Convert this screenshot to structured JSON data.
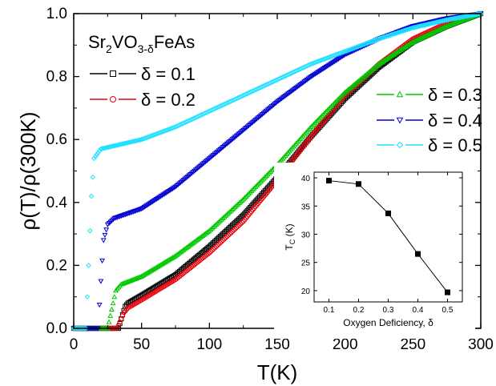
{
  "chart_data": [
    {
      "type": "scatter",
      "xlabel": "T(K)",
      "ylabel": "ρ(T)/ρ(300K)",
      "xlim": [
        0,
        300
      ],
      "ylim": [
        0,
        1.0
      ],
      "xticks": [
        "0",
        "50",
        "100",
        "150",
        "200",
        "250",
        "300"
      ],
      "yticks": [
        "0.0",
        "0.2",
        "0.4",
        "0.6",
        "0.8",
        "1.0"
      ],
      "grid": false,
      "legend_placement": "top-left and right",
      "compound": {
        "base": "Sr",
        "sub1": "2",
        "mid": "VO",
        "sub2": "3-δ",
        "end": "FeAs"
      },
      "series": [
        {
          "name": "δ = 0.1",
          "marker": "square",
          "color": "#000000",
          "tc": 33,
          "onset": 38,
          "x": [
            0,
            33,
            35,
            38,
            40,
            50,
            75,
            100,
            125,
            150,
            175,
            200,
            225,
            250,
            275,
            300
          ],
          "y": [
            0,
            0,
            0.03,
            0.07,
            0.08,
            0.105,
            0.17,
            0.26,
            0.36,
            0.48,
            0.61,
            0.73,
            0.83,
            0.91,
            0.96,
            1.0
          ]
        },
        {
          "name": "δ = 0.2",
          "marker": "circle",
          "color": "#e8000b",
          "tc": 32,
          "onset": 40,
          "x": [
            0,
            32,
            34,
            37,
            40,
            50,
            75,
            100,
            125,
            150,
            175,
            200,
            225,
            250,
            275,
            300
          ],
          "y": [
            0,
            0,
            0.02,
            0.05,
            0.065,
            0.09,
            0.155,
            0.24,
            0.34,
            0.47,
            0.61,
            0.74,
            0.84,
            0.92,
            0.97,
            1.0
          ]
        },
        {
          "name": "δ = 0.3",
          "marker": "triangle-up",
          "color": "#00c800",
          "tc": 25,
          "onset": 33,
          "x": [
            0,
            25,
            28,
            31,
            35,
            50,
            75,
            100,
            125,
            150,
            175,
            200,
            225,
            250,
            275,
            300
          ],
          "y": [
            0,
            0,
            0.06,
            0.12,
            0.14,
            0.165,
            0.23,
            0.31,
            0.41,
            0.52,
            0.64,
            0.75,
            0.84,
            0.91,
            0.96,
            1.0
          ]
        },
        {
          "name": "δ = 0.4",
          "marker": "triangle-down",
          "color": "#0000d0",
          "tc": 18,
          "onset": 25,
          "x": [
            0,
            18,
            20,
            22,
            25,
            30,
            50,
            75,
            100,
            125,
            150,
            175,
            200,
            225,
            250,
            275,
            300
          ],
          "y": [
            0,
            0,
            0.15,
            0.28,
            0.33,
            0.35,
            0.38,
            0.45,
            0.54,
            0.63,
            0.72,
            0.8,
            0.87,
            0.92,
            0.96,
            0.985,
            1.0
          ]
        },
        {
          "name": "δ = 0.5",
          "marker": "diamond",
          "color": "#20e0ff",
          "tc": 9,
          "onset": 15,
          "x": [
            0,
            9,
            11,
            13,
            15,
            20,
            30,
            50,
            75,
            100,
            125,
            150,
            175,
            200,
            225,
            250,
            275,
            300
          ],
          "y": [
            0,
            0,
            0.2,
            0.42,
            0.54,
            0.57,
            0.58,
            0.6,
            0.64,
            0.69,
            0.74,
            0.79,
            0.84,
            0.88,
            0.92,
            0.955,
            0.98,
            1.0
          ]
        }
      ]
    },
    {
      "type": "line",
      "xlabel": "Oxygen Deficiency, δ",
      "ylabel": "T",
      "ylabel_sub": "C",
      "ylabel_unit": " (K)",
      "xlim": [
        0.05,
        0.55
      ],
      "ylim": [
        18,
        41
      ],
      "xticks": [
        "0.1",
        "0.2",
        "0.3",
        "0.4",
        "0.5"
      ],
      "yticks": [
        "20",
        "25",
        "30",
        "35",
        "40"
      ],
      "marker": "square",
      "color": "#000000",
      "x": [
        0.1,
        0.2,
        0.3,
        0.4,
        0.5
      ],
      "y": [
        39.5,
        38.9,
        33.7,
        26.5,
        19.7
      ]
    }
  ]
}
